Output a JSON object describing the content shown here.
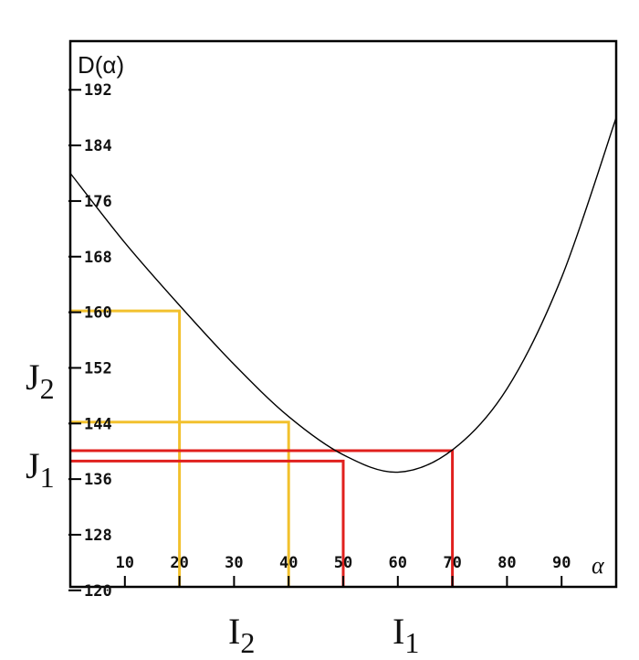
{
  "chart_data": {
    "type": "line",
    "ylabel": "D(α)",
    "xlabel": "α",
    "xlim": [
      0,
      100
    ],
    "ylim": [
      120.5,
      199
    ],
    "grid": false,
    "x_ticks": [
      10,
      20,
      30,
      40,
      50,
      60,
      70,
      80,
      90
    ],
    "y_ticks": [
      192,
      184,
      176,
      168,
      160,
      152,
      144,
      136,
      128,
      120
    ],
    "series": [
      {
        "x": [
          0,
          10,
          20,
          30,
          40,
          50,
          60,
          70,
          80,
          90,
          100
        ],
        "y": [
          180,
          170,
          161,
          152.5,
          145,
          139.5,
          137,
          140.2,
          149,
          165,
          188
        ],
        "color": "#000000"
      }
    ],
    "guides": [
      {
        "x": 20,
        "y": 160.2,
        "color": "#f2c12e"
      },
      {
        "x": 40,
        "y": 144.2,
        "color": "#f2c12e"
      },
      {
        "x": 50,
        "y": 138.6,
        "color": "#e0201e"
      },
      {
        "x": 70,
        "y": 140.1,
        "color": "#e0201e"
      }
    ],
    "annotations": [
      {
        "text": "J",
        "sub": "2",
        "near": "y=152 left"
      },
      {
        "text": "J",
        "sub": "1",
        "near": "y=139 left"
      },
      {
        "text": "I",
        "sub": "2",
        "near": "x=30 below"
      },
      {
        "text": "I",
        "sub": "1",
        "near": "x=60 below"
      }
    ]
  }
}
